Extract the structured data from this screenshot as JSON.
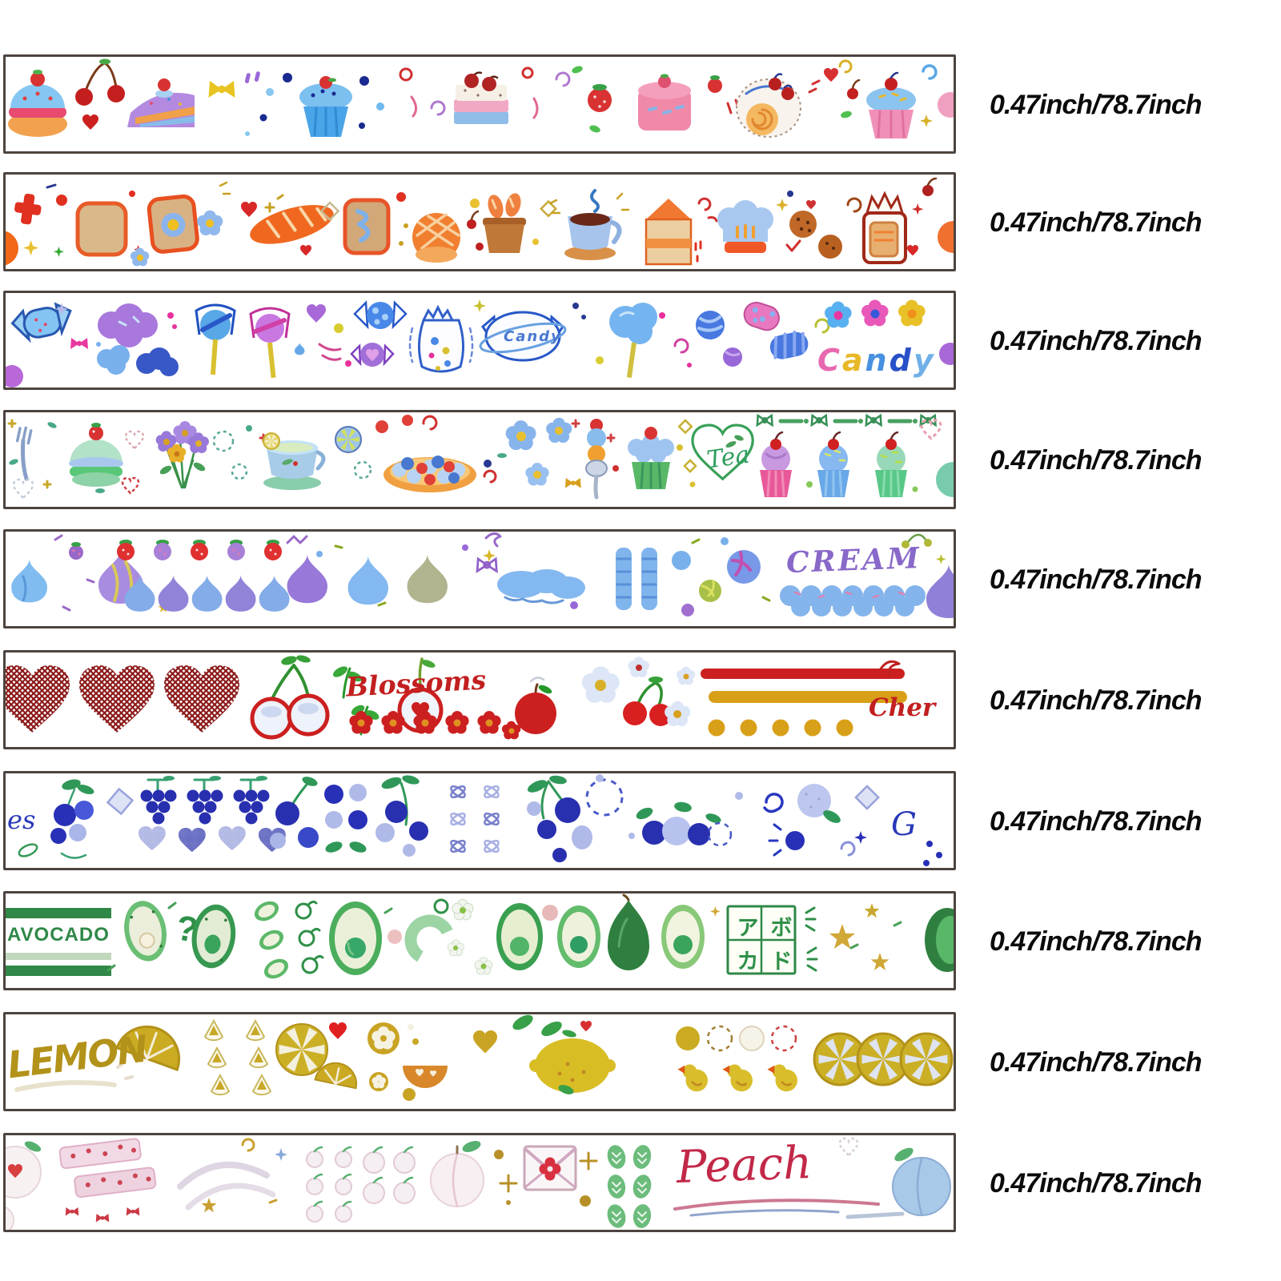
{
  "page": {
    "background": "#ffffff",
    "strip_border_color": "#4d443f",
    "strip_count": 10
  },
  "tapes": [
    {
      "name": "dessert-cake-tape",
      "theme": "cakes and desserts",
      "palette": [
        "#86c6f2",
        "#b48ae0",
        "#f2a24e",
        "#e84a70",
        "#d93232",
        "#1a2a90"
      ],
      "motifs": [
        "layered macaron cake",
        "cherries",
        "heart",
        "cake slice with strawberry",
        "yellow bow",
        "blue cupcake",
        "polka dots",
        "tiramisu with cherries",
        "strawberry",
        "pink cube cake",
        "swiss roll",
        "pink cupcake with cherry",
        "swirls"
      ],
      "labels": {},
      "size_label": "0.47inch/78.7inch"
    },
    {
      "name": "bread-bakery-tape",
      "theme": "bread and bakery",
      "palette": [
        "#f06820",
        "#d8b888",
        "#a8c4ec",
        "#f0c830",
        "#b05820"
      ],
      "motifs": [
        "toast",
        "egg toast",
        "fried-egg flower",
        "baguette",
        "melon bread",
        "bread box",
        "coffee cup",
        "milk carton",
        "chef hat",
        "chocolate chip cookies",
        "bread bag",
        "sparkles"
      ],
      "labels": {},
      "size_label": "0.47inch/78.7inch"
    },
    {
      "name": "candy-tape",
      "theme": "candy and sweets",
      "palette": [
        "#84c4f4",
        "#a878dc",
        "#e838a0",
        "#2858c8",
        "#d8cc30"
      ],
      "motifs": [
        "wrapped candy",
        "cotton candy clouds",
        "lollipops",
        "winged candies",
        "candy bag",
        "planet candy",
        "cotton candy stick",
        "swirl candies",
        "flowers"
      ],
      "labels": {
        "main": "Candy"
      },
      "letter_colors": [
        "#e868b0",
        "#e8b828",
        "#4890e0",
        "#2850c8",
        "#70b0e8"
      ],
      "size_label": "0.47inch/78.7inch"
    },
    {
      "name": "tea-dessert-tape",
      "theme": "tea party desserts",
      "palette": [
        "#48a868",
        "#a8cce8",
        "#d93232",
        "#f0a040",
        "#9878d8"
      ],
      "motifs": [
        "fork",
        "mint macaron cake",
        "flower bouquet",
        "teacup with lemon",
        "lemon slice",
        "berry tart",
        "blue daisies",
        "dessert spoon",
        "green cupcake",
        "heart wreath",
        "bow-and-dash border",
        "cherry cupcakes"
      ],
      "labels": {
        "main": "Tea"
      },
      "size_label": "0.47inch/78.7inch"
    },
    {
      "name": "cream-tape",
      "theme": "whipped cream and meringue",
      "palette": [
        "#80bcf0",
        "#9878d8",
        "#e03030",
        "#d8c858"
      ],
      "motifs": [
        "meringue kisses",
        "strawberry row",
        "meringue wave",
        "cream cloud",
        "piped cream columns",
        "swirl candies",
        "scalloped cream border",
        "cherries"
      ],
      "labels": {
        "main": "CREAM"
      },
      "size_label": "0.47inch/78.7inch"
    },
    {
      "name": "cherry-blossom-tape",
      "theme": "cherries and blossoms",
      "palette": [
        "#8c1a1a",
        "#cc2020",
        "#d8a018",
        "#289828",
        "#c8d8f0"
      ],
      "motifs": [
        "cross-stitch hearts",
        "white cherries",
        "sprouts",
        "cherry with heart",
        "red flowers",
        "apple",
        "daisies and cherries",
        "red bar",
        "gold bar",
        "gold dots"
      ],
      "labels": {
        "blossoms": "Blossoms",
        "cherry_partial": "Cher"
      },
      "size_label": "0.47inch/78.7inch"
    },
    {
      "name": "blueberry-grape-tape",
      "theme": "blueberries and grapes",
      "palette": [
        "#2838b8",
        "#aab6e8",
        "#2f9858"
      ],
      "motifs": [
        "blueberry cluster",
        "grape bunches",
        "stitched hearts",
        "berry sprigs",
        "dot grid",
        "ribbon bows",
        "dashed circles",
        "berry trio",
        "swirls",
        "diamond"
      ],
      "labels": {
        "left_partial": "es",
        "right_partial": "G"
      },
      "size_label": "0.47inch/78.7inch"
    },
    {
      "name": "avocado-tape",
      "theme": "avocados",
      "palette": [
        "#2f8848",
        "#58b868",
        "#e8ecd8",
        "#d0a838"
      ],
      "motifs": [
        "avocado halves",
        "avocado slices",
        "ring swirls",
        "whole avocado",
        "white flowers",
        "katakana stamp",
        "gold stars"
      ],
      "labels": {
        "main": "AVOCADO",
        "question": "?",
        "kana": [
          "ア",
          "ボ",
          "カ",
          "ド"
        ]
      },
      "size_label": "0.47inch/78.7inch"
    },
    {
      "name": "lemon-tape",
      "theme": "lemons",
      "palette": [
        "#c8a828",
        "#d8bc28",
        "#e07818",
        "#38a048"
      ],
      "motifs": [
        "lemon wedge",
        "lemon slice drops",
        "lemon slices",
        "flower slices",
        "orange half",
        "gold heart",
        "whole lemon",
        "circle row",
        "yellow ducks",
        "overlapping slices"
      ],
      "labels": {
        "main": "LEMON"
      },
      "size_label": "0.47inch/78.7inch"
    },
    {
      "name": "peach-tape",
      "theme": "peaches",
      "palette": [
        "#f6eef0",
        "#e8b8cc",
        "#c22848",
        "#68b878",
        "#a8c8e8"
      ],
      "motifs": [
        "apple cross-section",
        "dotted washi strips",
        "ribbon bows",
        "swoosh curves",
        "small peach grid",
        "white peach",
        "envelope with flower",
        "leaf grid",
        "underline swooshes",
        "blue peach"
      ],
      "labels": {
        "main": "Peach"
      },
      "size_label": "0.47inch/78.7inch"
    }
  ]
}
